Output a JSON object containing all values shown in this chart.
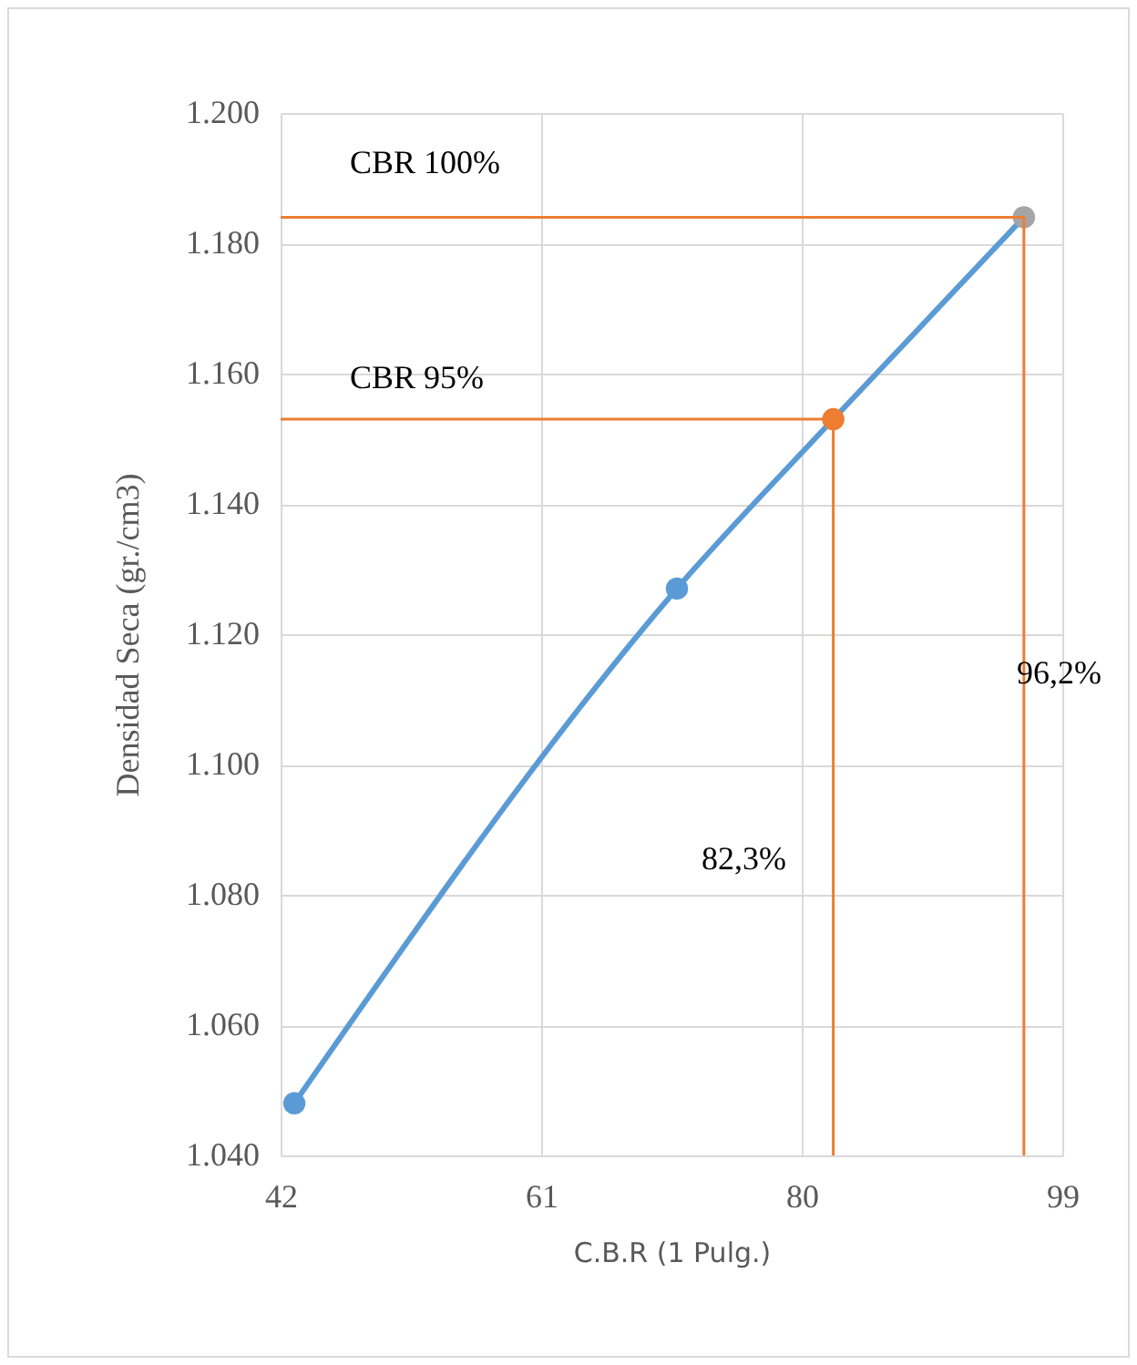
{
  "chart_data": {
    "type": "line",
    "xlabel": "C.B.R (1 Pulg.)",
    "ylabel": "Densidad Seca (gr./cm3)",
    "xlim": [
      42,
      99
    ],
    "xticks": [
      42,
      61,
      80,
      99
    ],
    "ylim": [
      1040,
      1200
    ],
    "yticks": [
      {
        "value": 1040,
        "label": "1.040"
      },
      {
        "value": 1060,
        "label": "1.060"
      },
      {
        "value": 1080,
        "label": "1.080"
      },
      {
        "value": 1100,
        "label": "1.100"
      },
      {
        "value": 1120,
        "label": "1.120"
      },
      {
        "value": 1140,
        "label": "1.140"
      },
      {
        "value": 1160,
        "label": "1.160"
      },
      {
        "value": 1180,
        "label": "1.180"
      },
      {
        "value": 1200,
        "label": "1.200"
      }
    ],
    "grid": true,
    "line_style": "solid",
    "series": [
      {
        "x": [
          43.0,
          70.9,
          82.3,
          96.2
        ],
        "values": [
          1048,
          1127,
          1153,
          1184
        ],
        "color": "#5b9bd5",
        "colors": [
          "#5b9bd5",
          "#5b9bd5",
          "#ed7d31",
          "#a5a5a5"
        ],
        "marker": "circle"
      },
      {
        "type": "line",
        "x": [
          42,
          96.2
        ],
        "values": [
          1184,
          1184
        ],
        "color": "#ed7d31",
        "marker": "none"
      },
      {
        "type": "line",
        "x": [
          96.2,
          96.2
        ],
        "values": [
          1040,
          1184
        ],
        "color": "#ed7d31",
        "marker": "none"
      },
      {
        "type": "line",
        "x": [
          42,
          82.3
        ],
        "values": [
          1153,
          1153
        ],
        "color": "#ed7d31",
        "marker": "none"
      },
      {
        "type": "line",
        "x": [
          82.3,
          82.3
        ],
        "values": [
          1040,
          1153
        ],
        "color": "#ed7d31",
        "marker": "none"
      }
    ],
    "annotations": [
      "CBR 100%",
      "CBR 95%",
      "82,3%",
      "96,2%"
    ]
  }
}
